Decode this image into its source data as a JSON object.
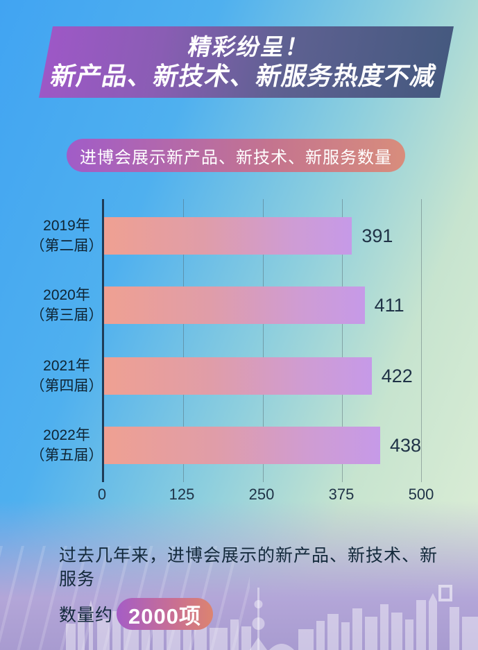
{
  "banner": {
    "line1": "精彩纷呈！",
    "line2": "新产品、新技术、新服务热度不减"
  },
  "subtitle": "进博会展示新产品、新技术、新服务数量",
  "chart_data": {
    "type": "bar",
    "orientation": "horizontal",
    "title": "进博会展示新产品、新技术、新服务数量",
    "categories": [
      "2019年（第二届）",
      "2020年（第三届）",
      "2021年（第四届）",
      "2022年（第五届）"
    ],
    "category_lines": [
      [
        "2019年",
        "（第二届）"
      ],
      [
        "2020年",
        "（第三届）"
      ],
      [
        "2021年",
        "（第四届）"
      ],
      [
        "2022年",
        "（第五届）"
      ]
    ],
    "values": [
      391,
      411,
      422,
      438
    ],
    "xlim": [
      0,
      500
    ],
    "x_ticks": [
      0,
      125,
      250,
      375,
      500
    ],
    "grid": true,
    "legend": false,
    "bar_gradient": [
      "#efa092",
      "#c69ae8"
    ]
  },
  "footer": {
    "line1": "过去几年来，进博会展示的新产品、新技术、新服务",
    "line2_prefix": "数量约",
    "badge": "2000项"
  },
  "colors": {
    "banner_gradient": [
      "#9d58c6",
      "#45597f"
    ],
    "subtitle_pill_gradient": [
      "#a15cc8",
      "#d88d7c"
    ],
    "badge_gradient": [
      "#a55dc6",
      "#dc8470"
    ],
    "background_top_left": "#41a4f2",
    "background_right": "#e0efd7",
    "background_bottom": "#b3a6d8",
    "axis_line": "#1e3c58",
    "text_dark": "#13293b"
  }
}
